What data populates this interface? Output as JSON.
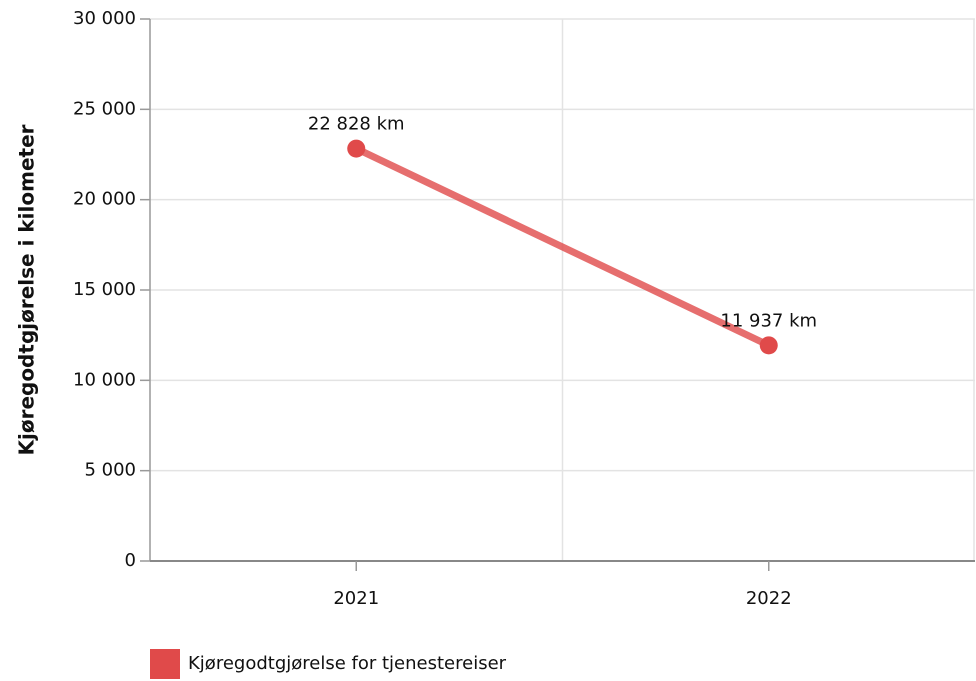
{
  "chart_data": {
    "type": "line",
    "y_label": "Kjøregodtgjørelse i kilometer",
    "categories": [
      "2021",
      "2022"
    ],
    "series": [
      {
        "name": "Kjøregodtgjørelse for tjenestereiser",
        "color": "#e04a4a",
        "values": [
          22828,
          11937
        ],
        "value_labels": [
          "22 828 km",
          "11 937 km"
        ]
      }
    ],
    "ylim": [
      0,
      30000
    ],
    "yticks": [
      0,
      {
        "value": 5000,
        "label": "5 000"
      },
      {
        "value": 10000,
        "label": "10 000"
      },
      {
        "value": 15000,
        "label": "15 000"
      },
      {
        "value": 20000,
        "label": "20 000"
      },
      {
        "value": 25000,
        "label": "25 000"
      },
      {
        "value": 30000,
        "label": "30 000"
      }
    ],
    "grid": true,
    "legend": "bottom"
  }
}
